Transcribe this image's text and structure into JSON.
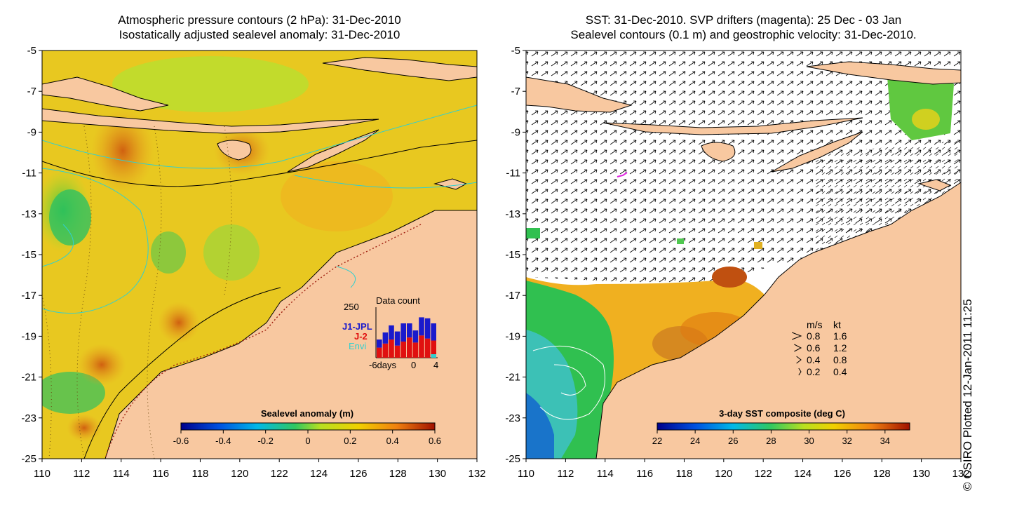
{
  "left_panel": {
    "title_line1": "Atmospheric pressure contours (2 hPa): 31-Dec-2010",
    "title_line2": "Isostatically adjusted sealevel anomaly: 31-Dec-2010",
    "colorbar": {
      "label": "Sealevel anomaly (m)",
      "ticks": [
        "-0.6",
        "-0.4",
        "-0.2",
        "0",
        "0.2",
        "0.4",
        "0.6"
      ],
      "range": [
        -0.6,
        0.6
      ]
    },
    "data_count": {
      "title": "Data count",
      "y_max_label": "250",
      "x_ticks": [
        "-6days",
        "0",
        "4"
      ],
      "legend": [
        {
          "label": "J1-JPL",
          "color": "#1a1acc"
        },
        {
          "label": "J-2",
          "color": "#e01010"
        },
        {
          "label": "Envi",
          "color": "#30d0d0"
        }
      ],
      "bars_j2": [
        50,
        70,
        90,
        60,
        80,
        100,
        75,
        110,
        95,
        85
      ],
      "bars_j1": [
        40,
        55,
        70,
        70,
        90,
        70,
        60,
        90,
        100,
        85
      ]
    }
  },
  "right_panel": {
    "title_line1": "SST: 31-Dec-2010. SVP drifters (magenta): 25 Dec - 03 Jan",
    "title_line2": "Sealevel contours (0.1 m) and geostrophic velocity: 31-Dec-2010.",
    "colorbar": {
      "label": "3-day SST composite (deg C)",
      "ticks": [
        "22",
        "24",
        "26",
        "28",
        "30",
        "32",
        "34"
      ],
      "range": [
        22,
        35.3
      ]
    },
    "velocity_key": {
      "header_ms": "m/s",
      "header_kt": "kt",
      "rows": [
        {
          "ms": "0.8",
          "kt": "1.6"
        },
        {
          "ms": "0.6",
          "kt": "1.2"
        },
        {
          "ms": "0.4",
          "kt": "0.8"
        },
        {
          "ms": "0.2",
          "kt": "0.4"
        }
      ]
    }
  },
  "axes": {
    "lon_ticks": [
      "110",
      "112",
      "114",
      "116",
      "118",
      "120",
      "122",
      "124",
      "126",
      "128",
      "130",
      "132"
    ],
    "lat_ticks": [
      "-5",
      "-7",
      "-9",
      "-11",
      "-13",
      "-15",
      "-17",
      "-19",
      "-21",
      "-23",
      "-25"
    ]
  },
  "credit": "© CSIRO Plotted 12-Jan-2011 11:25",
  "colors": {
    "land": "#f8c8a0",
    "ocean_base": "#e8d020",
    "contour": "#30d0d0"
  }
}
